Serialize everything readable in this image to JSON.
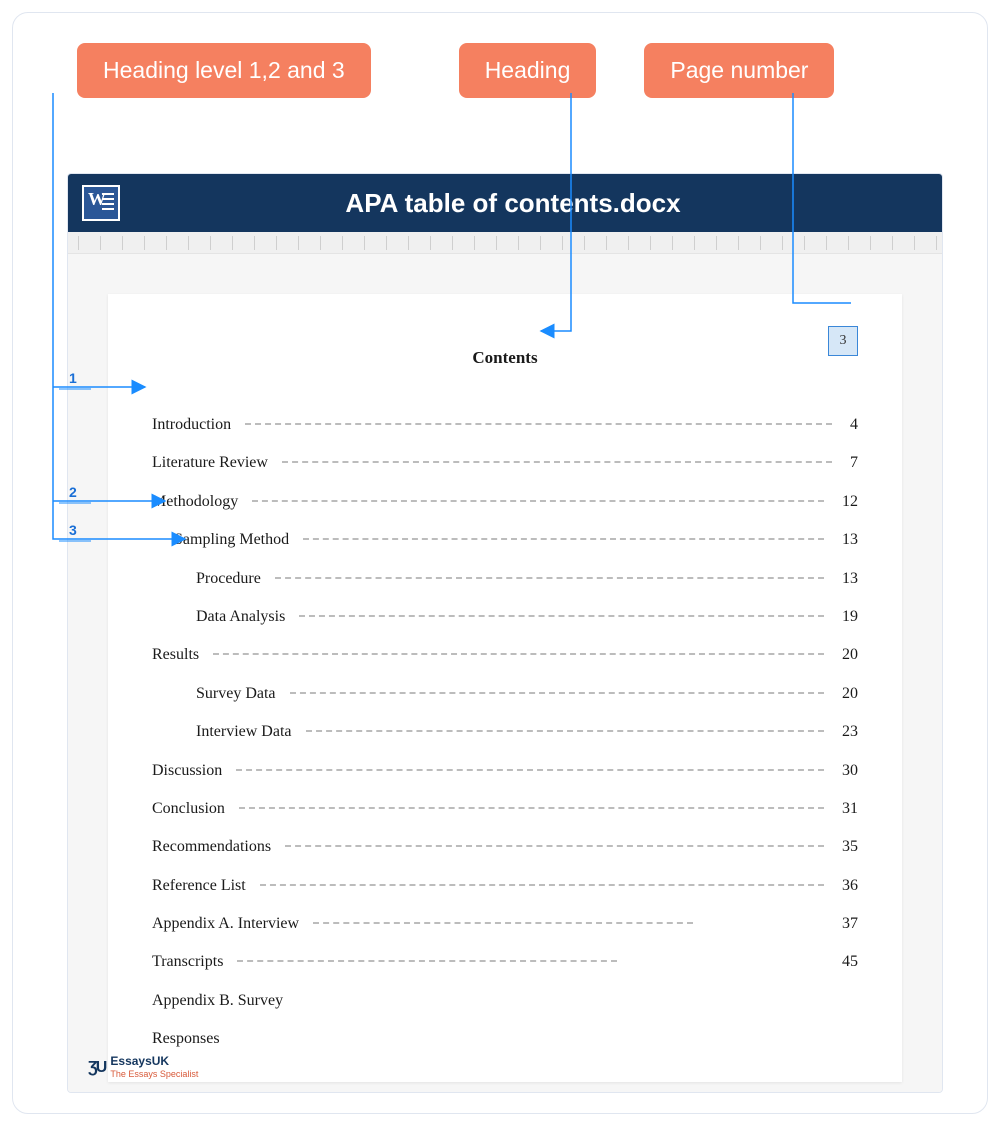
{
  "callouts": {
    "levels": "Heading level 1,2 and 3",
    "heading": "Heading",
    "pagenum": "Page number"
  },
  "doc": {
    "title": "APA table of contents.docx",
    "contents_heading": "Contents",
    "page_number": "3"
  },
  "colors": {
    "callout_bg": "#f58060",
    "titlebar_bg": "#14365e",
    "connector": "#1a8cff",
    "pagebox_border": "#3a87d8",
    "pagebox_fill": "#d6e7f7"
  },
  "level_markers": [
    "1",
    "2",
    "3"
  ],
  "toc": [
    {
      "label": "Introduction",
      "page": "4",
      "level": 1
    },
    {
      "label": "Literature Review",
      "page": "7",
      "level": 1
    },
    {
      "label": "Methodology",
      "page": "12",
      "level": 1
    },
    {
      "label": "Sampling Method",
      "page": "13",
      "level": 2
    },
    {
      "label": "Procedure",
      "page": "13",
      "level": 3
    },
    {
      "label": "Data Analysis",
      "page": "19",
      "level": 3
    },
    {
      "label": "Results",
      "page": "20",
      "level": 1
    },
    {
      "label": "Survey Data",
      "page": "20",
      "level": 3
    },
    {
      "label": "Interview Data",
      "page": "23",
      "level": 3
    },
    {
      "label": "Discussion",
      "page": "30",
      "level": 1
    },
    {
      "label": "Conclusion",
      "page": "31",
      "level": 1
    },
    {
      "label": "Recommendations",
      "page": "35",
      "level": 1
    },
    {
      "label": "Reference List",
      "page": "36",
      "level": 1
    },
    {
      "label": "Appendix A. Interview",
      "page": "37",
      "level": 1,
      "short_dots": true
    },
    {
      "label": "Transcripts",
      "page": "45",
      "level": 1,
      "short_dots": true
    },
    {
      "label": "Appendix B. Survey",
      "page": "",
      "level": 1,
      "no_dots": true
    },
    {
      "label": "Responses",
      "page": "",
      "level": 1,
      "no_dots": true
    }
  ],
  "logo": {
    "main": "EssaysUK",
    "sub": "The Essays Specialist"
  }
}
